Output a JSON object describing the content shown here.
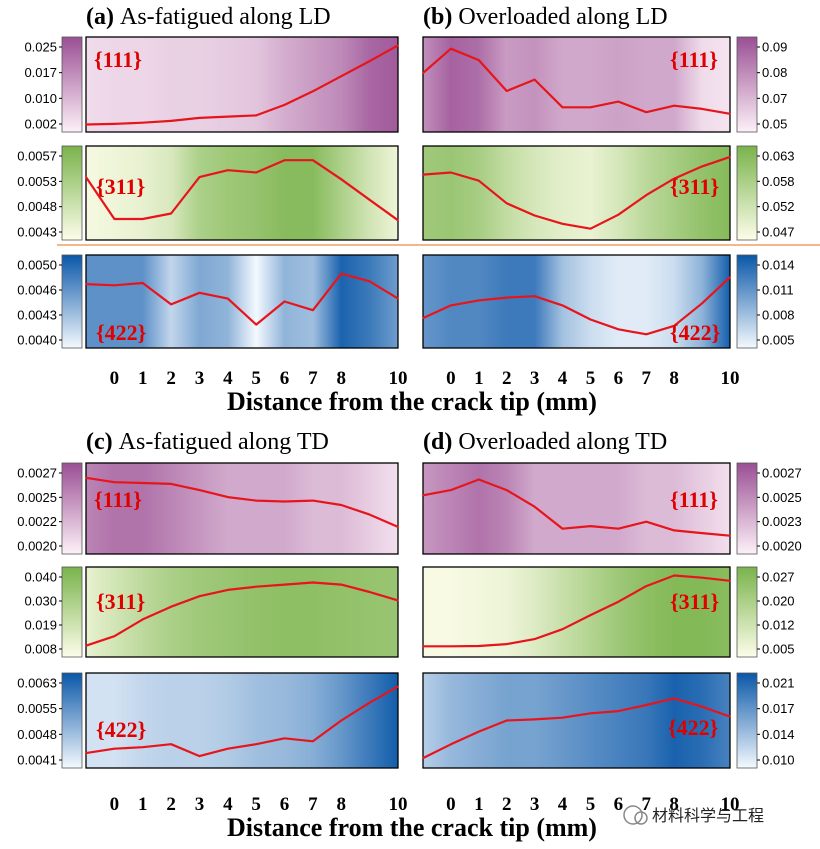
{
  "figure": {
    "watermark": "材料科学与工程",
    "sections": [
      {
        "xlabel": "Distance from the crack tip (mm)"
      },
      {
        "xlabel": "Distance from the crack tip (mm)"
      }
    ]
  },
  "chart_data": [
    {
      "type": "heatmap",
      "panel_letter": "(a)",
      "title": "As-fatigued along LD",
      "xlabel": "Distance from the crack tip (mm)",
      "x_ticks": [
        0,
        1,
        2,
        3,
        4,
        5,
        6,
        7,
        8,
        10
      ],
      "rows": [
        {
          "label": "{111}",
          "palette": "purple",
          "range": [
            0.0005,
            0.028
          ],
          "ticks": [
            "0.025",
            "0.017",
            "0.010",
            "0.002"
          ],
          "x": [
            -1,
            0,
            1,
            2,
            3,
            4,
            5,
            6,
            7,
            8,
            9,
            10
          ],
          "values": [
            0.001,
            0.0012,
            0.0016,
            0.0022,
            0.0032,
            0.0036,
            0.004,
            0.0075,
            0.012,
            0.017,
            0.022,
            0.0272
          ],
          "band": [
            0.004,
            0.005,
            0.005,
            0.006,
            0.006,
            0.007,
            0.008,
            0.012,
            0.015,
            0.018,
            0.024,
            0.026
          ]
        },
        {
          "label": "{311}",
          "palette": "green",
          "range": [
            0.0041,
            0.0059
          ],
          "ticks": [
            "0.0057",
            "0.0053",
            "0.0048",
            "0.0043"
          ],
          "x": [
            -1,
            0,
            1,
            2,
            3,
            4,
            5,
            6,
            7,
            8,
            9,
            10
          ],
          "values": [
            0.00535,
            0.00443,
            0.00443,
            0.00455,
            0.00535,
            0.0055,
            0.00545,
            0.00572,
            0.00572,
            0.0053,
            0.00485,
            0.0044
          ],
          "band": [
            0.0042,
            0.0043,
            0.0044,
            0.0046,
            0.0052,
            0.0054,
            0.0055,
            0.0057,
            0.0057,
            0.0052,
            0.0047,
            0.0043
          ]
        },
        {
          "label": "{422}",
          "palette": "blue",
          "range": [
            0.0038,
            0.0052
          ],
          "ticks": [
            "0.0050",
            "0.0046",
            "0.0043",
            "0.0040"
          ],
          "x": [
            -1,
            0,
            1,
            2,
            3,
            4,
            5,
            6,
            7,
            8,
            9,
            10
          ],
          "values": [
            0.0048,
            0.00478,
            0.00482,
            0.00445,
            0.00465,
            0.00455,
            0.0041,
            0.0045,
            0.00435,
            0.00498,
            0.00485,
            0.00455
          ],
          "band": [
            0.0047,
            0.0047,
            0.0047,
            0.0041,
            0.0045,
            0.0044,
            0.0038,
            0.0044,
            0.0043,
            0.0051,
            0.0049,
            0.0046
          ]
        }
      ]
    },
    {
      "type": "heatmap",
      "panel_letter": "(b)",
      "title": "Overloaded along LD",
      "xlabel": "Distance from the crack tip (mm)",
      "x_ticks": [
        0,
        1,
        2,
        3,
        4,
        5,
        6,
        7,
        8,
        10
      ],
      "rows": [
        {
          "label": "{111}",
          "palette": "purple",
          "range": [
            0.043,
            0.094
          ],
          "ticks": [
            "0.09",
            "0.08",
            "0.07",
            "0.05"
          ],
          "x": [
            -1,
            0,
            1,
            2,
            3,
            4,
            5,
            6,
            7,
            8,
            9,
            10
          ],
          "values": [
            0.0755,
            0.0905,
            0.0835,
            0.0645,
            0.0715,
            0.0545,
            0.0545,
            0.058,
            0.0515,
            0.0555,
            0.0535,
            0.0505
          ],
          "band": [
            0.074,
            0.088,
            0.084,
            0.07,
            0.073,
            0.066,
            0.066,
            0.068,
            0.066,
            0.066,
            0.05,
            0.047
          ]
        },
        {
          "label": "{311}",
          "palette": "green",
          "range": [
            0.045,
            0.065
          ],
          "ticks": [
            "0.063",
            "0.058",
            "0.052",
            "0.047"
          ],
          "x": [
            -1,
            0,
            1,
            2,
            3,
            4,
            5,
            6,
            7,
            8,
            9,
            10
          ],
          "values": [
            0.0595,
            0.06,
            0.058,
            0.0525,
            0.0495,
            0.0475,
            0.0463,
            0.0497,
            0.0545,
            0.0585,
            0.0615,
            0.0638
          ],
          "band": [
            0.059,
            0.06,
            0.058,
            0.054,
            0.051,
            0.049,
            0.048,
            0.051,
            0.055,
            0.058,
            0.061,
            0.063
          ]
        },
        {
          "label": "{422}",
          "palette": "blue",
          "range": [
            0.004,
            0.0155
          ],
          "ticks": [
            "0.014",
            "0.011",
            "0.008",
            "0.005"
          ],
          "x": [
            -1,
            0,
            1,
            2,
            3,
            4,
            5,
            6,
            7,
            8,
            9,
            10
          ],
          "values": [
            0.0074,
            0.0092,
            0.0099,
            0.0103,
            0.0105,
            0.0092,
            0.0072,
            0.0058,
            0.0051,
            0.0063,
            0.0095,
            0.0132
          ],
          "band": [
            0.011,
            0.012,
            0.012,
            0.013,
            0.013,
            0.008,
            0.006,
            0.005,
            0.005,
            0.006,
            0.009,
            0.015
          ]
        }
      ]
    },
    {
      "type": "heatmap",
      "panel_letter": "(c)",
      "title": "As-fatigued along TD",
      "xlabel": "Distance from the crack tip (mm)",
      "x_ticks": [
        0,
        1,
        2,
        3,
        4,
        5,
        6,
        7,
        8,
        10
      ],
      "rows": [
        {
          "label": "{111}",
          "palette": "purple",
          "range": [
            0.0019,
            0.0028
          ],
          "ticks": [
            "0.0027",
            "0.0025",
            "0.0022",
            "0.0020"
          ],
          "x": [
            -1,
            0,
            1,
            2,
            3,
            4,
            5,
            6,
            7,
            8,
            9,
            10
          ],
          "values": [
            0.0027,
            0.00265,
            0.00264,
            0.00263,
            0.00256,
            0.00248,
            0.00244,
            0.00243,
            0.00244,
            0.00239,
            0.00228,
            0.00214
          ],
          "band": [
            0.0025,
            0.0026,
            0.0026,
            0.0025,
            0.0024,
            0.0023,
            0.0023,
            0.0023,
            0.0022,
            0.0022,
            0.0021,
            0.002
          ]
        },
        {
          "label": "{311}",
          "palette": "green",
          "range": [
            0.006,
            0.043
          ],
          "ticks": [
            "0.040",
            "0.030",
            "0.019",
            "0.008"
          ],
          "x": [
            -1,
            0,
            1,
            2,
            3,
            4,
            5,
            6,
            7,
            8,
            9,
            10
          ],
          "values": [
            0.0085,
            0.013,
            0.021,
            0.027,
            0.032,
            0.035,
            0.0365,
            0.0375,
            0.0385,
            0.0375,
            0.034,
            0.03
          ],
          "band": [
            0.012,
            0.018,
            0.024,
            0.029,
            0.032,
            0.034,
            0.036,
            0.037,
            0.037,
            0.036,
            0.035,
            0.034
          ]
        },
        {
          "label": "{422}",
          "palette": "blue",
          "range": [
            0.0038,
            0.0066
          ],
          "ticks": [
            "0.0063",
            "0.0055",
            "0.0048",
            "0.0041"
          ],
          "x": [
            -1,
            0,
            1,
            2,
            3,
            4,
            5,
            6,
            7,
            8,
            9,
            10
          ],
          "values": [
            0.0041,
            0.00425,
            0.0043,
            0.0044,
            0.004,
            0.00425,
            0.0044,
            0.0046,
            0.0045,
            0.0052,
            0.0058,
            0.00635
          ],
          "band": [
            0.0042,
            0.0042,
            0.0044,
            0.0045,
            0.0045,
            0.0046,
            0.0048,
            0.0049,
            0.0051,
            0.0055,
            0.006,
            0.0065
          ]
        }
      ]
    },
    {
      "type": "heatmap",
      "panel_letter": "(d)",
      "title": "Overloaded along TD",
      "xlabel": "Distance from the crack tip (mm)",
      "x_ticks": [
        0,
        1,
        2,
        3,
        4,
        5,
        6,
        7,
        8,
        10
      ],
      "rows": [
        {
          "label": "{111}",
          "palette": "purple",
          "range": [
            0.0019,
            0.0028
          ],
          "ticks": [
            "0.0027",
            "0.0025",
            "0.0023",
            "0.0020"
          ],
          "x": [
            -1,
            0,
            1,
            2,
            3,
            4,
            5,
            6,
            7,
            8,
            9,
            10
          ],
          "values": [
            0.0025,
            0.00256,
            0.00268,
            0.00256,
            0.00237,
            0.00212,
            0.00215,
            0.00212,
            0.0022,
            0.0021,
            0.00207,
            0.00204
          ],
          "band": [
            0.0024,
            0.0025,
            0.0026,
            0.0025,
            0.0023,
            0.0023,
            0.0023,
            0.0023,
            0.0022,
            0.0022,
            0.0021,
            0.002
          ]
        },
        {
          "label": "{311}",
          "palette": "green",
          "range": [
            0.004,
            0.029
          ],
          "ticks": [
            "0.027",
            "0.020",
            "0.012",
            "0.005"
          ],
          "x": [
            -1,
            0,
            1,
            2,
            3,
            4,
            5,
            6,
            7,
            8,
            9,
            10
          ],
          "values": [
            0.0055,
            0.0055,
            0.0056,
            0.0062,
            0.0078,
            0.011,
            0.0155,
            0.0198,
            0.0248,
            0.0282,
            0.0275,
            0.0265
          ],
          "band": [
            0.005,
            0.005,
            0.006,
            0.007,
            0.01,
            0.014,
            0.018,
            0.022,
            0.025,
            0.027,
            0.027,
            0.026
          ]
        },
        {
          "label": "{422}",
          "palette": "blue",
          "range": [
            0.008,
            0.023
          ],
          "ticks": [
            "0.021",
            "0.017",
            "0.014",
            "0.010"
          ],
          "x": [
            -1,
            0,
            1,
            2,
            3,
            4,
            5,
            6,
            7,
            8,
            9,
            10
          ],
          "values": [
            0.0087,
            0.0112,
            0.0135,
            0.0155,
            0.0157,
            0.016,
            0.0168,
            0.0172,
            0.0183,
            0.0195,
            0.018,
            0.0162
          ],
          "band": [
            0.012,
            0.014,
            0.015,
            0.016,
            0.016,
            0.017,
            0.018,
            0.019,
            0.02,
            0.022,
            0.021,
            0.019
          ]
        }
      ]
    }
  ]
}
